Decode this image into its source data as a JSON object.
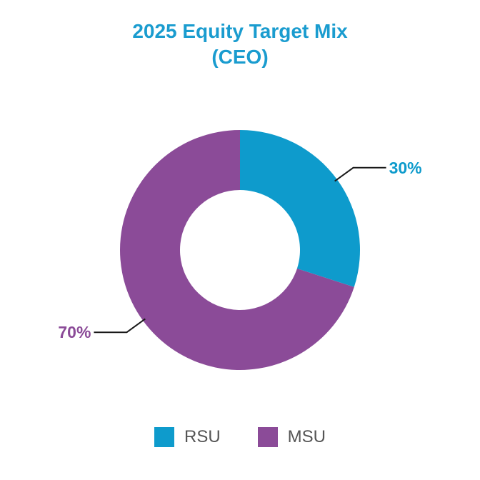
{
  "chart_data": {
    "type": "pie",
    "title_line1": "2025 Equity Target Mix",
    "title_line2": "(CEO)",
    "slices": [
      {
        "name": "RSU",
        "value": 30,
        "label": "30%",
        "color": "#0e9bcc"
      },
      {
        "name": "MSU",
        "value": 70,
        "label": "70%",
        "color": "#8b4b98"
      }
    ],
    "legend_position": "bottom",
    "donut": true
  }
}
